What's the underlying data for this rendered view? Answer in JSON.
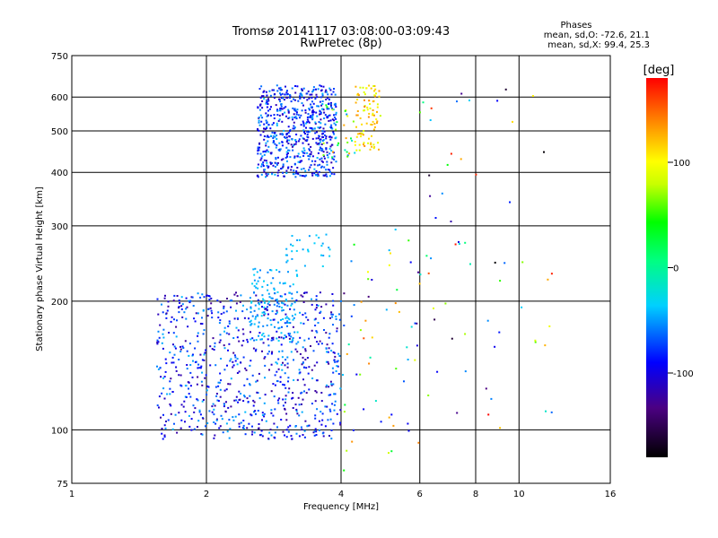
{
  "chart_data": {
    "type": "scatter",
    "title": "Tromsø 20141117 03:08:00-03:09:43",
    "subtitle": "RwPretec (8p)",
    "xlabel": "Frequency [MHz]",
    "ylabel": "Stationary phase Virtual Height [km]",
    "x_scale": "log",
    "y_scale": "log",
    "xlim": [
      1,
      16
    ],
    "ylim": [
      75,
      750
    ],
    "x_ticks": [
      1,
      2,
      4,
      6,
      8,
      10,
      16
    ],
    "x_tick_labels": [
      "1",
      "2",
      "4",
      "6",
      "8",
      "10",
      "16"
    ],
    "y_ticks": [
      75,
      100,
      200,
      300,
      400,
      500,
      600,
      750
    ],
    "y_tick_labels": [
      "75",
      "100",
      "200",
      "300",
      "400",
      "500",
      "600",
      "750"
    ],
    "grid": true,
    "colorbar": {
      "label": "[deg]",
      "range": [
        -180,
        180
      ],
      "ticks": [
        100,
        0,
        -100
      ],
      "tick_labels": [
        "100",
        "0",
        "-100"
      ]
    },
    "stats": {
      "heading": "Phases",
      "line_O": "mean, sd,O: -72.6, 21.1",
      "line_X": "mean, sd,X:  99.4, 25.3"
    },
    "clusters": [
      {
        "freq": [
          2.6,
          3.9
        ],
        "height": [
          390,
          640
        ],
        "phase": [
          -120,
          -40
        ],
        "n": 650
      },
      {
        "freq": [
          4.3,
          4.9
        ],
        "height": [
          450,
          640
        ],
        "phase": [
          80,
          140
        ],
        "n": 90
      },
      {
        "freq": [
          3.6,
          4.3
        ],
        "height": [
          430,
          580
        ],
        "phase": [
          -60,
          140
        ],
        "n": 30
      },
      {
        "freq": [
          1.55,
          4.0
        ],
        "height": [
          95,
          210
        ],
        "phase": [
          -130,
          -40
        ],
        "n": 800
      },
      {
        "freq": [
          2.5,
          3.2
        ],
        "height": [
          160,
          240
        ],
        "phase": [
          -60,
          -30
        ],
        "n": 130
      },
      {
        "freq": [
          3.0,
          3.8
        ],
        "height": [
          240,
          290
        ],
        "phase": [
          -50,
          -30
        ],
        "n": 30
      },
      {
        "freq": [
          4.0,
          6.0
        ],
        "height": [
          80,
          300
        ],
        "phase": [
          -140,
          160
        ],
        "n": 60
      },
      {
        "freq": [
          6.0,
          12.0
        ],
        "height": [
          100,
          630
        ],
        "phase": [
          -180,
          180
        ],
        "n": 60
      }
    ]
  }
}
